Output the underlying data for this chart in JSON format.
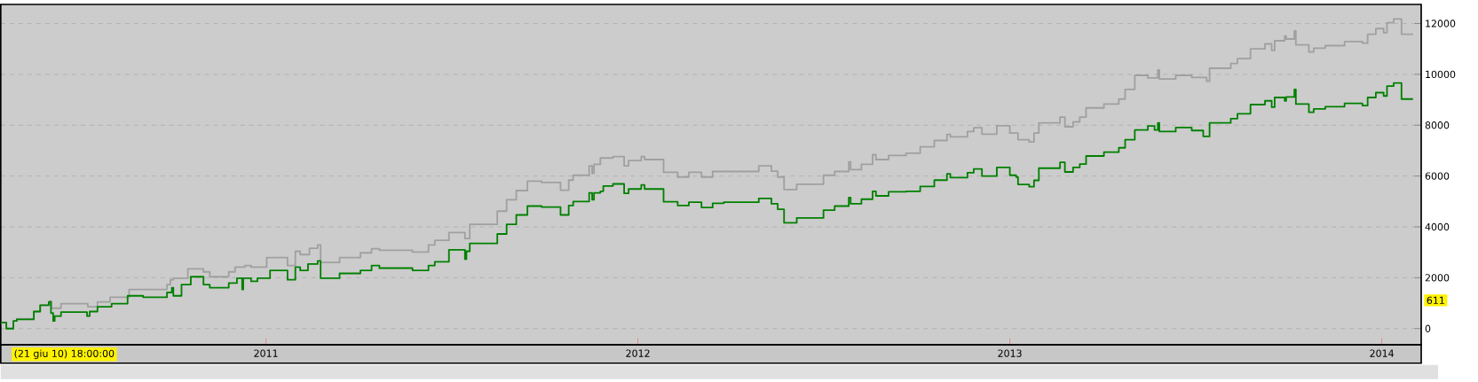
{
  "chart_data": {
    "type": "step",
    "xlim": [
      2010.287,
      2014.106
    ],
    "xticks": [
      2011,
      2012,
      2013,
      2014
    ],
    "ylim": [
      -630,
      12750
    ],
    "yticks": [
      0,
      2000,
      4000,
      6000,
      8000,
      10000,
      12000
    ],
    "grid": "y",
    "line_style": "solid",
    "marker": "none",
    "annotations": [
      "(21 giu 10) 18:00:00",
      "611"
    ],
    "series": [
      {
        "color": "#a0a0a0",
        "x": [
          2010.287,
          2010.302,
          2010.321,
          2010.33,
          2010.376,
          2010.393,
          2010.419,
          2010.423,
          2010.449,
          2010.521,
          2010.547,
          2010.581,
          2010.632,
          2010.734,
          2010.743,
          2010.751,
          2010.79,
          2010.832,
          2010.849,
          2010.9,
          2010.917,
          2010.943,
          2010.96,
          2011.002,
          2011.058,
          2011.079,
          2011.092,
          2011.117,
          2011.139,
          2011.147,
          2011.198,
          2011.254,
          2011.284,
          2011.305,
          2011.394,
          2011.437,
          2011.454,
          2011.492,
          2011.535,
          2011.548,
          2011.622,
          2011.647,
          2011.673,
          2011.703,
          2011.741,
          2011.792,
          2011.814,
          2011.826,
          2011.869,
          2011.877,
          2011.882,
          2011.899,
          2011.933,
          2011.963,
          2011.975,
          2012.009,
          2012.018,
          2012.069,
          2012.107,
          2012.137,
          2012.171,
          2012.201,
          2012.325,
          2012.359,
          2012.376,
          2012.393,
          2012.427,
          2012.499,
          2012.529,
          2012.567,
          2012.572,
          2012.601,
          2012.631,
          2012.64,
          2012.674,
          2012.721,
          2012.759,
          2012.797,
          2012.831,
          2012.84,
          2012.886,
          2012.903,
          2012.925,
          2012.965,
          2013.0,
          2013.022,
          2013.052,
          2013.065,
          2013.078,
          2013.135,
          2013.148,
          2013.17,
          2013.188,
          2013.205,
          2013.253,
          2013.293,
          2013.31,
          2013.336,
          2013.371,
          2013.398,
          2013.402,
          2013.446,
          2013.489,
          2013.529,
          2013.537,
          2013.594,
          2013.612,
          2013.647,
          2013.686,
          2013.704,
          2013.712,
          2013.739,
          2013.743,
          2013.765,
          2013.769,
          2013.804,
          2013.817,
          2013.848,
          2013.9,
          2013.948,
          2013.962,
          2013.984,
          2014.005,
          2014.014,
          2014.032,
          2014.053,
          2014.084
        ],
        "values": [
          240,
          0,
          300,
          390,
          670,
          920,
          1080,
          800,
          980,
          860,
          1050,
          1230,
          1540,
          1730,
          1920,
          1980,
          2350,
          2230,
          2040,
          2230,
          2420,
          2480,
          2420,
          2790,
          2480,
          3040,
          2910,
          3160,
          3290,
          2600,
          2790,
          2980,
          3140,
          3080,
          3010,
          3290,
          3470,
          3780,
          3540,
          4100,
          4620,
          5070,
          5430,
          5800,
          5750,
          5440,
          5840,
          6030,
          6400,
          6110,
          6460,
          6710,
          6770,
          6400,
          6610,
          6770,
          6650,
          6150,
          5960,
          6150,
          5960,
          6180,
          6400,
          6190,
          5960,
          5470,
          5680,
          6030,
          6180,
          6560,
          6250,
          6460,
          6840,
          6650,
          6810,
          6900,
          7150,
          7400,
          7640,
          7540,
          7750,
          7900,
          7650,
          7980,
          7690,
          7430,
          7340,
          7690,
          8090,
          8320,
          7940,
          8130,
          8320,
          8680,
          8830,
          9030,
          9410,
          9960,
          9860,
          10170,
          9820,
          9960,
          9880,
          9730,
          10240,
          10430,
          10620,
          11000,
          11200,
          10940,
          11320,
          11510,
          11390,
          11710,
          11160,
          10880,
          11030,
          11130,
          11290,
          11230,
          11580,
          11800,
          11640,
          12030,
          12180,
          11580,
          11580
        ]
      },
      {
        "color": "#008000",
        "x": [
          2010.287,
          2010.302,
          2010.321,
          2010.33,
          2010.376,
          2010.393,
          2010.416,
          2010.422,
          2010.428,
          2010.432,
          2010.449,
          2010.519,
          2010.526,
          2010.547,
          2010.585,
          2010.628,
          2010.67,
          2010.734,
          2010.747,
          2010.751,
          2010.773,
          2010.798,
          2010.832,
          2010.849,
          2010.9,
          2010.922,
          2010.936,
          2010.939,
          2010.96,
          2010.977,
          2011.011,
          2011.058,
          2011.079,
          2011.092,
          2011.113,
          2011.139,
          2011.147,
          2011.198,
          2011.254,
          2011.284,
          2011.305,
          2011.394,
          2011.437,
          2011.454,
          2011.492,
          2011.535,
          2011.539,
          2011.548,
          2011.622,
          2011.647,
          2011.673,
          2011.703,
          2011.741,
          2011.792,
          2011.814,
          2011.826,
          2011.869,
          2011.877,
          2011.882,
          2011.899,
          2011.907,
          2011.933,
          2011.963,
          2011.975,
          2012.009,
          2012.018,
          2012.069,
          2012.107,
          2012.137,
          2012.171,
          2012.201,
          2012.231,
          2012.325,
          2012.359,
          2012.376,
          2012.393,
          2012.427,
          2012.499,
          2012.529,
          2012.567,
          2012.572,
          2012.601,
          2012.631,
          2012.64,
          2012.674,
          2012.721,
          2012.759,
          2012.797,
          2012.831,
          2012.84,
          2012.886,
          2012.903,
          2012.925,
          2012.965,
          2013.0,
          2013.017,
          2013.022,
          2013.052,
          2013.065,
          2013.078,
          2013.135,
          2013.148,
          2013.17,
          2013.188,
          2013.205,
          2013.253,
          2013.293,
          2013.31,
          2013.336,
          2013.371,
          2013.389,
          2013.398,
          2013.402,
          2013.446,
          2013.489,
          2013.52,
          2013.537,
          2013.594,
          2013.612,
          2013.647,
          2013.686,
          2013.704,
          2013.712,
          2013.739,
          2013.743,
          2013.765,
          2013.769,
          2013.804,
          2013.817,
          2013.848,
          2013.9,
          2013.948,
          2013.962,
          2013.984,
          2014.005,
          2014.014,
          2014.032,
          2014.053,
          2014.084
        ],
        "values": [
          240,
          0,
          300,
          360,
          670,
          920,
          1050,
          610,
          300,
          490,
          650,
          490,
          670,
          860,
          980,
          1290,
          1230,
          1420,
          1610,
          1290,
          1730,
          2040,
          1730,
          1610,
          1790,
          1980,
          1540,
          1980,
          1860,
          1980,
          2290,
          1920,
          2420,
          2290,
          2540,
          2660,
          1980,
          2170,
          2290,
          2480,
          2380,
          2290,
          2480,
          2630,
          3100,
          2730,
          3040,
          3350,
          3720,
          4100,
          4470,
          4820,
          4780,
          4470,
          4840,
          5000,
          5340,
          5070,
          5340,
          5400,
          5610,
          5690,
          5320,
          5490,
          5650,
          5490,
          4990,
          4840,
          4970,
          4760,
          4930,
          4970,
          5120,
          4910,
          4690,
          4160,
          4350,
          4660,
          4820,
          5150,
          4910,
          5090,
          5400,
          5220,
          5380,
          5400,
          5590,
          5840,
          6090,
          5940,
          6130,
          6280,
          6000,
          6340,
          6030,
          5960,
          5670,
          5580,
          5830,
          6310,
          6540,
          6160,
          6340,
          6470,
          6790,
          6940,
          7110,
          7430,
          7810,
          7970,
          7810,
          8090,
          7750,
          7910,
          7790,
          7560,
          8090,
          8260,
          8450,
          8810,
          8960,
          8710,
          9090,
          8960,
          9110,
          9410,
          8830,
          8510,
          8640,
          8730,
          8860,
          8770,
          9090,
          9280,
          9150,
          9540,
          9660,
          9030,
          9030
        ]
      }
    ]
  }
}
